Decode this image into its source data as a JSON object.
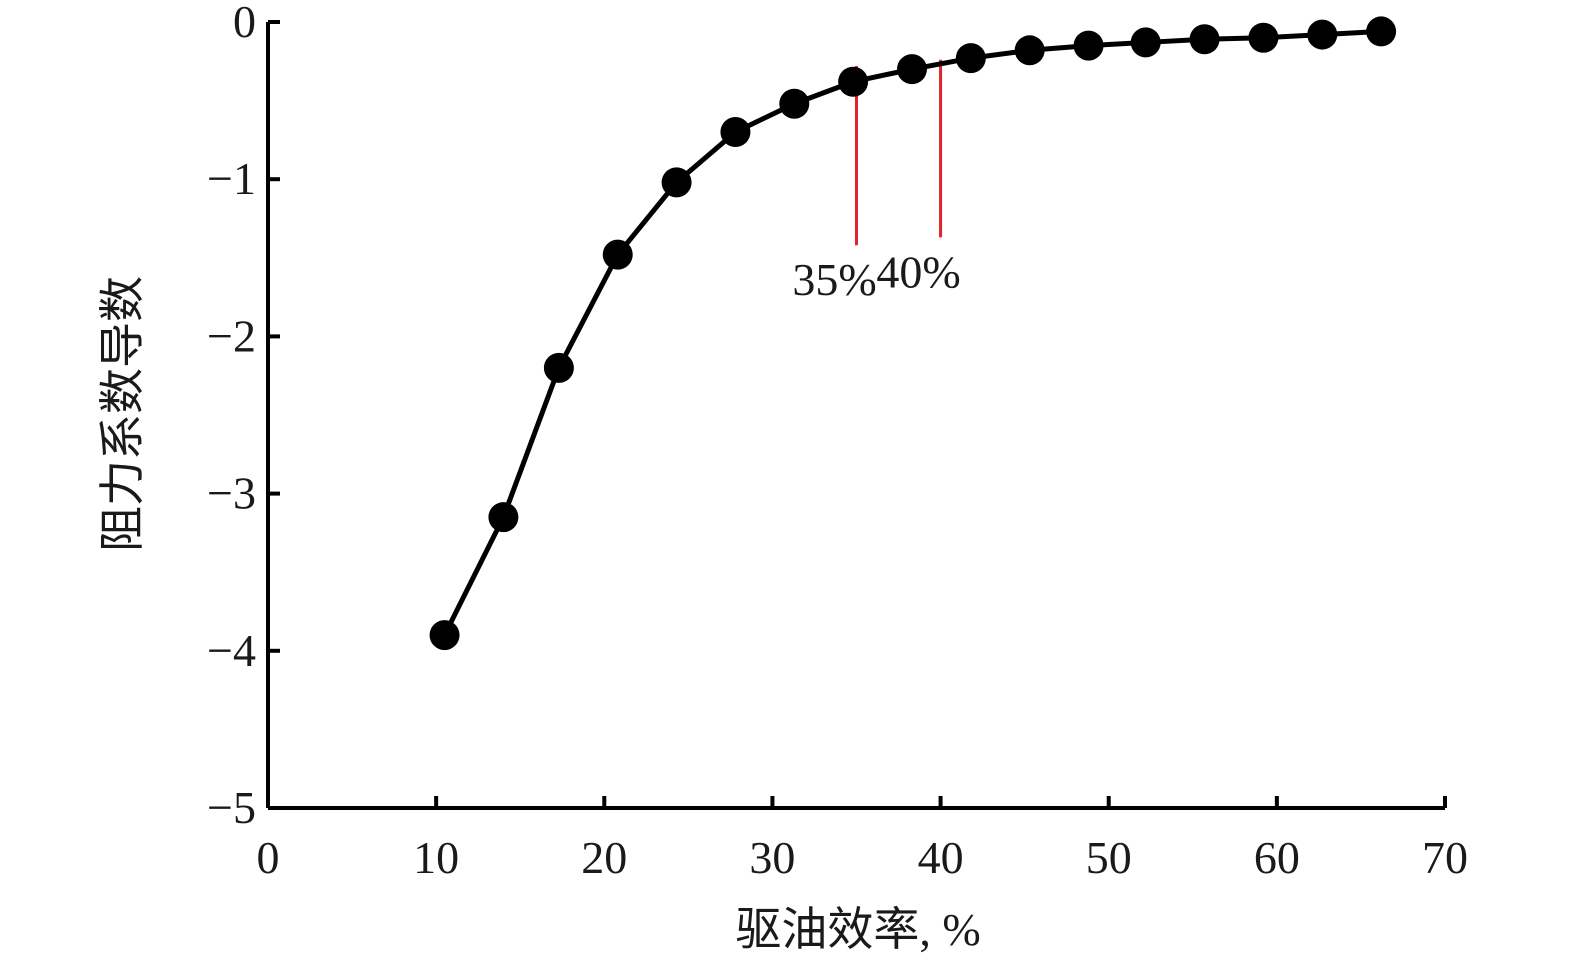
{
  "chart_data": {
    "type": "line",
    "title": "",
    "xlabel": "驱油效率, %",
    "ylabel": "阻力系数导数",
    "xlim": [
      0,
      70
    ],
    "ylim": [
      -5,
      0
    ],
    "xticks": [
      0,
      10,
      20,
      30,
      40,
      50,
      60,
      70
    ],
    "yticks": [
      0,
      -1,
      -2,
      -3,
      -4,
      -5
    ],
    "xtick_labels": [
      "0",
      "10",
      "20",
      "30",
      "40",
      "50",
      "60",
      "70"
    ],
    "ytick_labels": [
      "0",
      "−1",
      "−2",
      "−3",
      "−4",
      "−5"
    ],
    "grid": false,
    "legend": "none",
    "series": [
      {
        "x": [
          10.5,
          14,
          17.3,
          20.8,
          24.3,
          27.8,
          31.3,
          34.8,
          38.3,
          41.8,
          45.3,
          48.8,
          52.2,
          55.7,
          59.2,
          62.7,
          66.2
        ],
        "y": [
          -3.9,
          -3.15,
          -2.2,
          -1.48,
          -1.02,
          -0.7,
          -0.52,
          -0.38,
          -0.3,
          -0.23,
          -0.18,
          -0.15,
          -0.13,
          -0.11,
          -0.1,
          -0.08,
          -0.06
        ],
        "color": "#000000",
        "marker": "circle"
      }
    ],
    "annotations": [
      {
        "x": 35,
        "y_top": -0.28,
        "y_bottom": -1.42,
        "label": "35%",
        "color": "#e0242b"
      },
      {
        "x": 40,
        "y_top": -0.24,
        "y_bottom": -1.37,
        "label": "40%",
        "color": "#e0242b"
      }
    ]
  }
}
